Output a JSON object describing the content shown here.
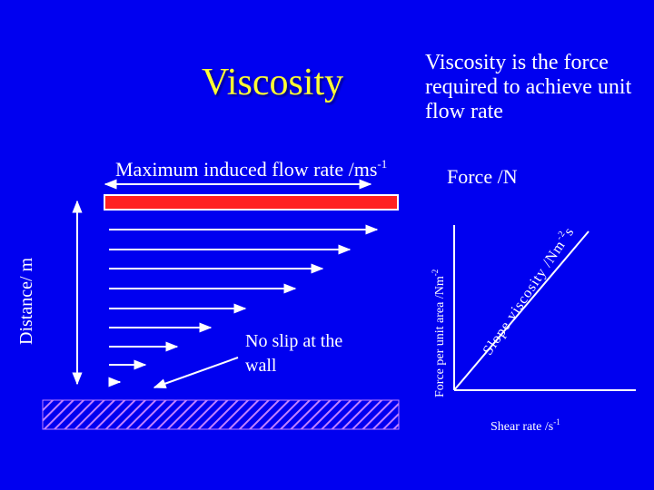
{
  "title": "Viscosity",
  "definition": "Viscosity is the force required to achieve unit flow rate",
  "flow_label": {
    "text": "Maximum induced flow rate /ms",
    "sup": "-1"
  },
  "force_label": "Force /N",
  "distance_label": "Distance/ m",
  "no_slip_label": "No slip at the wall",
  "graph": {
    "y_label": {
      "text": "Force per unit area /Nm",
      "sup": "-2"
    },
    "x_label": {
      "text": "Shear rate /s",
      "sup": "-1"
    },
    "slope_label": {
      "text": "Slope viscosity /Nm",
      "sup": "-2",
      "suffix": "s"
    }
  },
  "colors": {
    "background": "#0000f0",
    "title": "#ffff33",
    "top_plate": "#ff2020",
    "wall_hatch": "#c080ff",
    "lines": "#ffffff"
  }
}
